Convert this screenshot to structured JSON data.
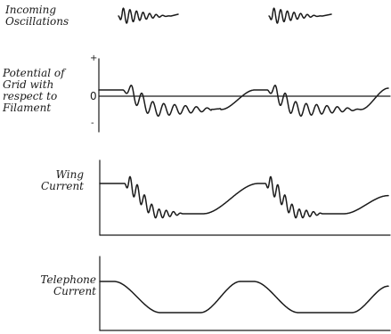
{
  "labels": {
    "incoming_line1": "Incoming",
    "incoming_line2": "Oscillations",
    "grid_line1": "Potential of",
    "grid_line2": "Grid with",
    "grid_line3": "respect to",
    "grid_line4": "Filament",
    "wing_line1": "Wing",
    "wing_line2": "Current",
    "telephone_line1": "Telephone",
    "telephone_line2": "Current"
  },
  "axis_marks": {
    "plus": "+",
    "zero": "0",
    "minus": "-"
  }
}
